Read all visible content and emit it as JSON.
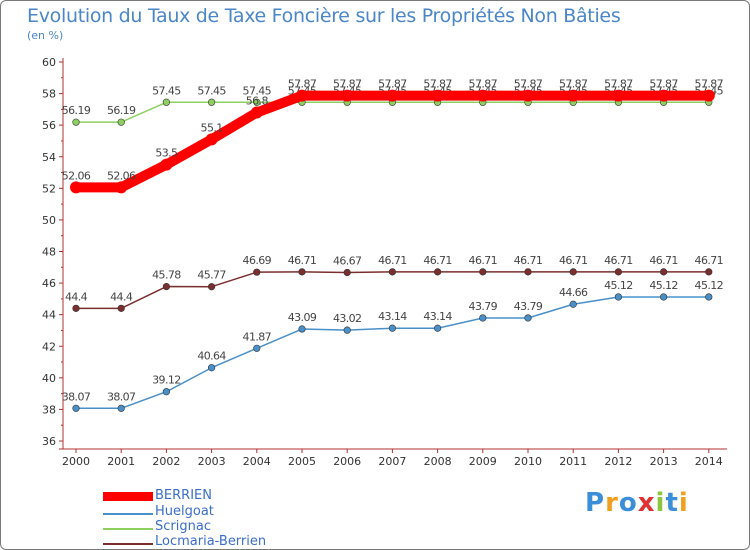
{
  "chart_data": {
    "type": "line",
    "title": "Evolution du Taux de Taxe Foncière sur les Propriétés Non Bâties",
    "unit_label": "(en %)",
    "xlabel": "",
    "ylabel": "",
    "ylim": [
      36,
      60
    ],
    "yticks": [
      "36",
      "38",
      "40",
      "42",
      "44",
      "46",
      "48",
      "50",
      "52",
      "54",
      "56",
      "58",
      "60"
    ],
    "x": [
      "2000",
      "2001",
      "2002",
      "2003",
      "2004",
      "2005",
      "2006",
      "2007",
      "2008",
      "2009",
      "2010",
      "2011",
      "2012",
      "2013",
      "2014"
    ],
    "series": [
      {
        "name": "Locmaria-Berrien",
        "color": "#7a2e2e",
        "values": [
          44.4,
          44.4,
          45.78,
          45.77,
          46.69,
          46.71,
          46.67,
          46.71,
          46.71,
          46.71,
          46.71,
          46.71,
          46.71,
          46.71,
          46.71
        ],
        "labels": [
          "44.4",
          "44.4",
          "45.78",
          "45.77",
          "46.69",
          "46.71",
          "46.67",
          "46.71",
          "46.71",
          "46.71",
          "46.71",
          "46.71",
          "46.71",
          "46.71",
          "46.71"
        ]
      },
      {
        "name": "Huelgoat",
        "color": "#4a90c8",
        "values": [
          38.07,
          38.07,
          39.12,
          40.64,
          41.87,
          43.09,
          43.02,
          43.14,
          43.14,
          43.79,
          43.79,
          44.66,
          45.12,
          45.12,
          45.12
        ],
        "labels": [
          "38.07",
          "38.07",
          "39.12",
          "40.64",
          "41.87",
          "43.09",
          "43.02",
          "43.14",
          "43.14",
          "43.79",
          "43.79",
          "44.66",
          "45.12",
          "45.12",
          "45.12"
        ]
      },
      {
        "name": "Scrignac",
        "color": "#8ed060",
        "values": [
          56.19,
          56.19,
          57.45,
          57.45,
          57.45,
          57.45,
          57.45,
          57.45,
          57.45,
          57.45,
          57.45,
          57.45,
          57.45,
          57.45,
          57.45
        ],
        "labels": [
          "56.19",
          "56.19",
          "57.45",
          "57.45",
          "57.45",
          "57.45",
          "57.45",
          "57.45",
          "57.45",
          "57.45",
          "57.45",
          "57.45",
          "57.45",
          "57.45",
          "57.45"
        ]
      },
      {
        "name": "BERRIEN",
        "color": "#ff0000",
        "values": [
          52.06,
          52.06,
          53.5,
          55.1,
          56.8,
          57.87,
          57.87,
          57.87,
          57.87,
          57.87,
          57.87,
          57.87,
          57.87,
          57.87,
          57.87
        ],
        "labels": [
          "52.06",
          "52.06",
          "53.5",
          "55.1",
          "56.8",
          "57.87",
          "57.87",
          "57.87",
          "57.87",
          "57.87",
          "57.87",
          "57.87",
          "57.87",
          "57.87",
          "57.87"
        ]
      }
    ],
    "legend": [
      "BERRIEN",
      "Huelgoat",
      "Scrignac",
      "Locmaria-Berrien"
    ],
    "legend_position": "bottom-left",
    "grid": false
  },
  "logo": {
    "text": "Proxiti",
    "letters": [
      "P",
      "r",
      "o",
      "x",
      "i",
      "t",
      "i"
    ],
    "colors": [
      "#3a8fd8",
      "#f0a020",
      "#3a8fd8",
      "#e03030",
      "#8cc63f",
      "#3a8fd8",
      "#f0a020"
    ]
  }
}
